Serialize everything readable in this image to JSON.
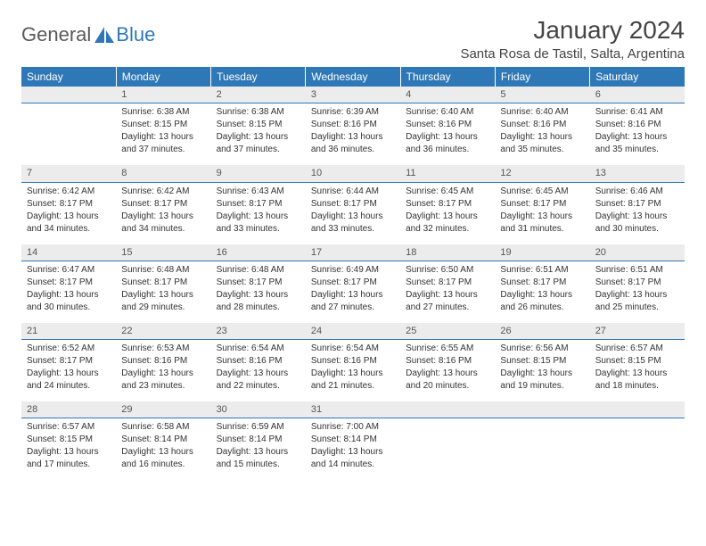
{
  "logo": {
    "general": "General",
    "blue": "Blue"
  },
  "title": "January 2024",
  "location": "Santa Rosa de Tastil, Salta, Argentina",
  "colors": {
    "header_bg": "#2f78b7",
    "header_text": "#ffffff",
    "daynum_bg": "#ececec",
    "daynum_border": "#2f78b7",
    "body_text": "#333333",
    "page_bg": "#ffffff"
  },
  "weekdays": [
    "Sunday",
    "Monday",
    "Tuesday",
    "Wednesday",
    "Thursday",
    "Friday",
    "Saturday"
  ],
  "weeks": [
    [
      null,
      {
        "n": "1",
        "sr": "Sunrise: 6:38 AM",
        "ss": "Sunset: 8:15 PM",
        "dl1": "Daylight: 13 hours",
        "dl2": "and 37 minutes."
      },
      {
        "n": "2",
        "sr": "Sunrise: 6:38 AM",
        "ss": "Sunset: 8:15 PM",
        "dl1": "Daylight: 13 hours",
        "dl2": "and 37 minutes."
      },
      {
        "n": "3",
        "sr": "Sunrise: 6:39 AM",
        "ss": "Sunset: 8:16 PM",
        "dl1": "Daylight: 13 hours",
        "dl2": "and 36 minutes."
      },
      {
        "n": "4",
        "sr": "Sunrise: 6:40 AM",
        "ss": "Sunset: 8:16 PM",
        "dl1": "Daylight: 13 hours",
        "dl2": "and 36 minutes."
      },
      {
        "n": "5",
        "sr": "Sunrise: 6:40 AM",
        "ss": "Sunset: 8:16 PM",
        "dl1": "Daylight: 13 hours",
        "dl2": "and 35 minutes."
      },
      {
        "n": "6",
        "sr": "Sunrise: 6:41 AM",
        "ss": "Sunset: 8:16 PM",
        "dl1": "Daylight: 13 hours",
        "dl2": "and 35 minutes."
      }
    ],
    [
      {
        "n": "7",
        "sr": "Sunrise: 6:42 AM",
        "ss": "Sunset: 8:17 PM",
        "dl1": "Daylight: 13 hours",
        "dl2": "and 34 minutes."
      },
      {
        "n": "8",
        "sr": "Sunrise: 6:42 AM",
        "ss": "Sunset: 8:17 PM",
        "dl1": "Daylight: 13 hours",
        "dl2": "and 34 minutes."
      },
      {
        "n": "9",
        "sr": "Sunrise: 6:43 AM",
        "ss": "Sunset: 8:17 PM",
        "dl1": "Daylight: 13 hours",
        "dl2": "and 33 minutes."
      },
      {
        "n": "10",
        "sr": "Sunrise: 6:44 AM",
        "ss": "Sunset: 8:17 PM",
        "dl1": "Daylight: 13 hours",
        "dl2": "and 33 minutes."
      },
      {
        "n": "11",
        "sr": "Sunrise: 6:45 AM",
        "ss": "Sunset: 8:17 PM",
        "dl1": "Daylight: 13 hours",
        "dl2": "and 32 minutes."
      },
      {
        "n": "12",
        "sr": "Sunrise: 6:45 AM",
        "ss": "Sunset: 8:17 PM",
        "dl1": "Daylight: 13 hours",
        "dl2": "and 31 minutes."
      },
      {
        "n": "13",
        "sr": "Sunrise: 6:46 AM",
        "ss": "Sunset: 8:17 PM",
        "dl1": "Daylight: 13 hours",
        "dl2": "and 30 minutes."
      }
    ],
    [
      {
        "n": "14",
        "sr": "Sunrise: 6:47 AM",
        "ss": "Sunset: 8:17 PM",
        "dl1": "Daylight: 13 hours",
        "dl2": "and 30 minutes."
      },
      {
        "n": "15",
        "sr": "Sunrise: 6:48 AM",
        "ss": "Sunset: 8:17 PM",
        "dl1": "Daylight: 13 hours",
        "dl2": "and 29 minutes."
      },
      {
        "n": "16",
        "sr": "Sunrise: 6:48 AM",
        "ss": "Sunset: 8:17 PM",
        "dl1": "Daylight: 13 hours",
        "dl2": "and 28 minutes."
      },
      {
        "n": "17",
        "sr": "Sunrise: 6:49 AM",
        "ss": "Sunset: 8:17 PM",
        "dl1": "Daylight: 13 hours",
        "dl2": "and 27 minutes."
      },
      {
        "n": "18",
        "sr": "Sunrise: 6:50 AM",
        "ss": "Sunset: 8:17 PM",
        "dl1": "Daylight: 13 hours",
        "dl2": "and 27 minutes."
      },
      {
        "n": "19",
        "sr": "Sunrise: 6:51 AM",
        "ss": "Sunset: 8:17 PM",
        "dl1": "Daylight: 13 hours",
        "dl2": "and 26 minutes."
      },
      {
        "n": "20",
        "sr": "Sunrise: 6:51 AM",
        "ss": "Sunset: 8:17 PM",
        "dl1": "Daylight: 13 hours",
        "dl2": "and 25 minutes."
      }
    ],
    [
      {
        "n": "21",
        "sr": "Sunrise: 6:52 AM",
        "ss": "Sunset: 8:17 PM",
        "dl1": "Daylight: 13 hours",
        "dl2": "and 24 minutes."
      },
      {
        "n": "22",
        "sr": "Sunrise: 6:53 AM",
        "ss": "Sunset: 8:16 PM",
        "dl1": "Daylight: 13 hours",
        "dl2": "and 23 minutes."
      },
      {
        "n": "23",
        "sr": "Sunrise: 6:54 AM",
        "ss": "Sunset: 8:16 PM",
        "dl1": "Daylight: 13 hours",
        "dl2": "and 22 minutes."
      },
      {
        "n": "24",
        "sr": "Sunrise: 6:54 AM",
        "ss": "Sunset: 8:16 PM",
        "dl1": "Daylight: 13 hours",
        "dl2": "and 21 minutes."
      },
      {
        "n": "25",
        "sr": "Sunrise: 6:55 AM",
        "ss": "Sunset: 8:16 PM",
        "dl1": "Daylight: 13 hours",
        "dl2": "and 20 minutes."
      },
      {
        "n": "26",
        "sr": "Sunrise: 6:56 AM",
        "ss": "Sunset: 8:15 PM",
        "dl1": "Daylight: 13 hours",
        "dl2": "and 19 minutes."
      },
      {
        "n": "27",
        "sr": "Sunrise: 6:57 AM",
        "ss": "Sunset: 8:15 PM",
        "dl1": "Daylight: 13 hours",
        "dl2": "and 18 minutes."
      }
    ],
    [
      {
        "n": "28",
        "sr": "Sunrise: 6:57 AM",
        "ss": "Sunset: 8:15 PM",
        "dl1": "Daylight: 13 hours",
        "dl2": "and 17 minutes."
      },
      {
        "n": "29",
        "sr": "Sunrise: 6:58 AM",
        "ss": "Sunset: 8:14 PM",
        "dl1": "Daylight: 13 hours",
        "dl2": "and 16 minutes."
      },
      {
        "n": "30",
        "sr": "Sunrise: 6:59 AM",
        "ss": "Sunset: 8:14 PM",
        "dl1": "Daylight: 13 hours",
        "dl2": "and 15 minutes."
      },
      {
        "n": "31",
        "sr": "Sunrise: 7:00 AM",
        "ss": "Sunset: 8:14 PM",
        "dl1": "Daylight: 13 hours",
        "dl2": "and 14 minutes."
      },
      null,
      null,
      null
    ]
  ]
}
